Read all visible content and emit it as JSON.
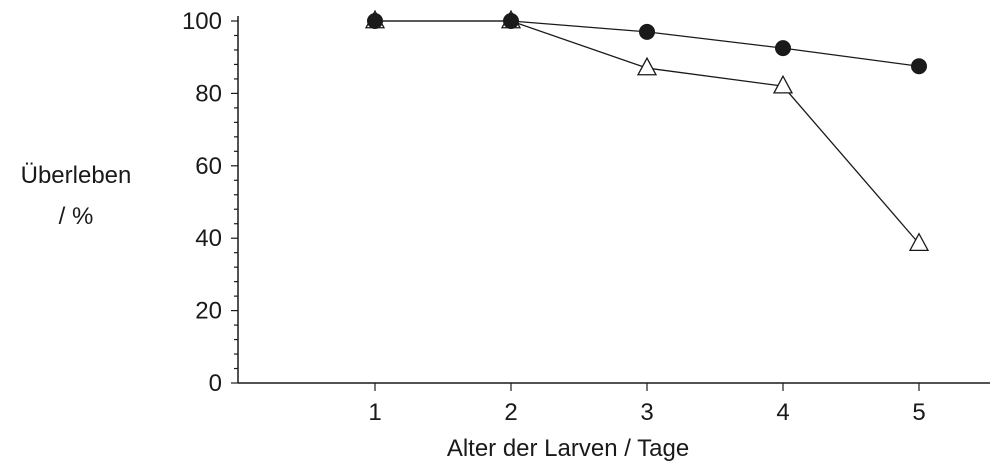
{
  "chart_data": {
    "type": "line",
    "xlabel": "Alter der Larven / Tage",
    "ylabel_line1": "Überleben",
    "ylabel_line2": "/ %",
    "x": [
      1,
      2,
      3,
      4,
      5
    ],
    "x_ticks": [
      "1",
      "2",
      "3",
      "4",
      "5"
    ],
    "ylim": [
      0,
      100
    ],
    "y_ticks": [
      "0",
      "20",
      "40",
      "60",
      "80",
      "100"
    ],
    "grid": false,
    "series": [
      {
        "marker": "filled-circle",
        "values": [
          100,
          100,
          97,
          92.5,
          87.5
        ]
      },
      {
        "marker": "open-triangle",
        "values": [
          100,
          100,
          87,
          82,
          38.5
        ]
      }
    ]
  }
}
